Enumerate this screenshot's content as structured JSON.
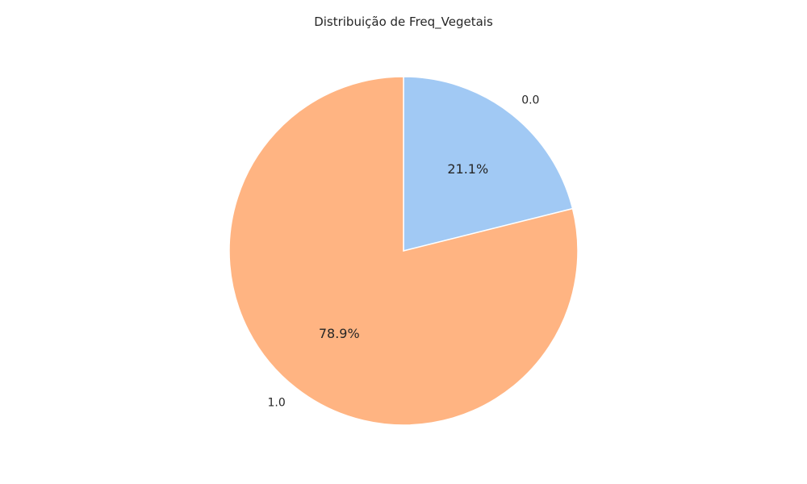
{
  "chart_data": {
    "type": "pie",
    "title": "Distribuição de Freq_Vegetais",
    "categories": [
      "0.0",
      "1.0"
    ],
    "values": [
      21.1,
      78.9
    ],
    "value_labels": [
      "21.1%",
      "78.9%"
    ],
    "colors": [
      "#a1c9f4",
      "#ffb482"
    ],
    "start_angle_deg": 90,
    "direction": "clockwise",
    "edge_color": "#ffffff"
  }
}
